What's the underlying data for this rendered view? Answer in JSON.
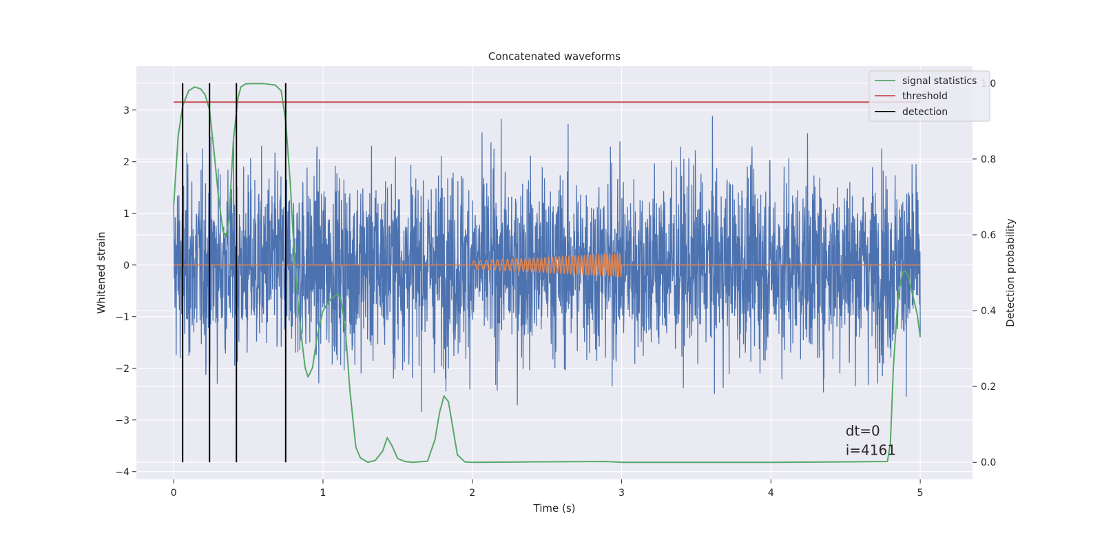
{
  "chart_data": {
    "type": "line",
    "title": "Concatenated waveforms",
    "xlabel": "Time (s)",
    "ylabel": "Whitened strain",
    "y2label": "Detection probability",
    "xlim": [
      -0.25,
      5.35
    ],
    "ylim": [
      -4.15,
      3.85
    ],
    "y2lim": [
      -0.045,
      1.045
    ],
    "x_ticks": [
      0,
      1,
      2,
      3,
      4,
      5
    ],
    "x_tick_labels": [
      "0",
      "1",
      "2",
      "3",
      "4",
      "5"
    ],
    "y_ticks": [
      -4,
      -3,
      -2,
      -1,
      0,
      1,
      2,
      3
    ],
    "y_tick_labels": [
      "−4",
      "−3",
      "−2",
      "−1",
      "0",
      "1",
      "2",
      "3"
    ],
    "y2_ticks": [
      0.0,
      0.2,
      0.4,
      0.6,
      0.8,
      1.0
    ],
    "y2_tick_labels": [
      "0.0",
      "0.2",
      "0.4",
      "0.6",
      "0.8",
      "1.0"
    ],
    "grid": true,
    "legend_position": "top-right",
    "background_color": "#eaeaf2",
    "noise": {
      "x_range": [
        0,
        5
      ],
      "amplitude_std": 0.9,
      "max": 3.45,
      "min": -3.8,
      "color": "#4c72b0"
    },
    "injected_waveform": {
      "t_start": 2.0,
      "t_end": 3.0,
      "amplitude_start": 0.08,
      "amplitude_end": 0.22,
      "freq_start": 22,
      "freq_end": 60,
      "color": "#dd8452"
    },
    "series": [
      {
        "name": "signal statistics",
        "axis": "right",
        "color": "#55a868",
        "x": [
          0.0,
          0.03,
          0.06,
          0.1,
          0.14,
          0.18,
          0.21,
          0.24,
          0.27,
          0.3,
          0.33,
          0.35,
          0.37,
          0.4,
          0.43,
          0.45,
          0.48,
          0.52,
          0.6,
          0.68,
          0.72,
          0.75,
          0.78,
          0.8,
          0.82,
          0.85,
          0.88,
          0.9,
          0.93,
          0.96,
          1.0,
          1.05,
          1.1,
          1.12,
          1.15,
          1.18,
          1.22,
          1.25,
          1.3,
          1.35,
          1.4,
          1.43,
          1.46,
          1.5,
          1.55,
          1.6,
          1.7,
          1.75,
          1.78,
          1.81,
          1.84,
          1.87,
          1.9,
          1.95,
          2.0,
          2.4,
          2.9,
          3.0,
          3.5,
          4.0,
          4.5,
          4.78,
          4.8,
          4.82,
          4.85,
          4.88,
          4.9,
          4.92,
          4.95,
          4.98,
          5.0
        ],
        "y": [
          0.68,
          0.86,
          0.94,
          0.98,
          0.99,
          0.985,
          0.97,
          0.93,
          0.82,
          0.7,
          0.61,
          0.595,
          0.64,
          0.85,
          0.96,
          0.99,
          0.998,
          0.999,
          0.999,
          0.995,
          0.98,
          0.9,
          0.74,
          0.6,
          0.48,
          0.35,
          0.25,
          0.225,
          0.25,
          0.33,
          0.4,
          0.43,
          0.445,
          0.43,
          0.35,
          0.19,
          0.04,
          0.012,
          0.0,
          0.005,
          0.03,
          0.065,
          0.045,
          0.01,
          0.002,
          0.0,
          0.003,
          0.06,
          0.13,
          0.175,
          0.16,
          0.09,
          0.02,
          0.001,
          0.0,
          0.001,
          0.002,
          0.0,
          0.0,
          0.0,
          0.001,
          0.002,
          0.05,
          0.25,
          0.43,
          0.5,
          0.505,
          0.49,
          0.44,
          0.39,
          0.33
        ]
      },
      {
        "name": "threshold",
        "axis": "right",
        "color": "#c44e52",
        "x": [
          0,
          5
        ],
        "y": [
          0.95,
          0.95
        ]
      },
      {
        "name": "detection",
        "axis": "right",
        "color": "#000000",
        "x": [
          0.06,
          0.24,
          0.42,
          0.75
        ],
        "type": "vlines",
        "ymin": 0.0,
        "ymax": 1.0
      }
    ],
    "annotation": {
      "lines": [
        "dt=0",
        "i=4161"
      ],
      "x": 4.5,
      "y": -3.3
    }
  }
}
